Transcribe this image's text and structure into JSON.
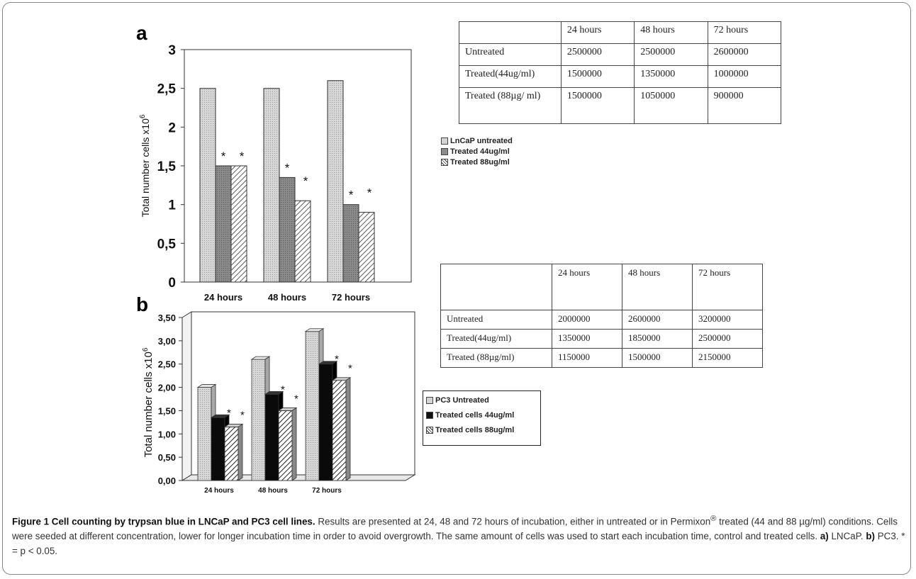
{
  "panel_a": {
    "letter": "a",
    "table": {
      "header": [
        "",
        "24 hours",
        "48 hours",
        "72 hours"
      ],
      "rows": [
        [
          "Untreated",
          "2500000",
          "2500000",
          "2600000"
        ],
        [
          "Treated(44ug/ml)",
          "1500000",
          "1350000",
          "1000000"
        ],
        [
          "Treated (88µg/ ml)",
          "1500000",
          "1050000",
          "900000"
        ]
      ]
    },
    "legend": [
      "LnCaP untreated",
      "Treated 44ug/ml",
      "Treated 88ug/ml"
    ]
  },
  "panel_b": {
    "letter": "b",
    "table": {
      "header": [
        "",
        "24 hours",
        "48 hours",
        "72 hours"
      ],
      "rows": [
        [
          "Untreated",
          "2000000",
          "2600000",
          "3200000"
        ],
        [
          "Treated(44ug/ml)",
          "1350000",
          "1850000",
          "2500000"
        ],
        [
          "Treated (88µg/ml)",
          "1150000",
          "1500000",
          "2150000"
        ]
      ]
    },
    "legend": [
      "PC3 Untreated",
      "Treated cells 44ug/ml",
      "Treated cells 88ug/ml"
    ]
  },
  "chart_data": [
    {
      "type": "bar",
      "panel": "a",
      "categories": [
        "24 hours",
        "48 hours",
        "72 hours"
      ],
      "series": [
        {
          "name": "LnCaP untreated",
          "values": [
            2.5,
            2.5,
            2.6
          ],
          "color": "#d4d4d4"
        },
        {
          "name": "Treated 44ug/ml",
          "values": [
            1.5,
            1.35,
            1.0
          ],
          "color": "#8c8c8c"
        },
        {
          "name": "Treated 88ug/ml",
          "values": [
            1.5,
            1.05,
            0.9
          ],
          "color": "#ffffff"
        }
      ],
      "significance": [
        [
          false,
          true,
          true
        ],
        [
          false,
          true,
          true
        ],
        [
          false,
          true,
          true
        ]
      ],
      "star": "*",
      "ylabel": "Total number cells x10",
      "ylabel_sup": "6",
      "ylim": [
        0,
        3
      ],
      "yticks": [
        0,
        0.5,
        1,
        1.5,
        2,
        2.5,
        3
      ],
      "ytick_labels": [
        "0",
        "0,5",
        "1",
        "1,5",
        "2",
        "2,5",
        "3"
      ],
      "grid": false,
      "legend_position": "right"
    },
    {
      "type": "bar",
      "panel": "b",
      "style": "3d",
      "categories": [
        "24 hours",
        "48 hours",
        "72 hours"
      ],
      "series": [
        {
          "name": "PC3 Untreated",
          "values": [
            2.0,
            2.6,
            3.2
          ],
          "color": "#d4d4d4"
        },
        {
          "name": "Treated cells 44ug/ml",
          "values": [
            1.35,
            1.85,
            2.5
          ],
          "color": "#0a0a0a"
        },
        {
          "name": "Treated cells 88ug/ml",
          "values": [
            1.15,
            1.5,
            2.15
          ],
          "color": "#ffffff"
        }
      ],
      "significance": [
        [
          false,
          true,
          true
        ],
        [
          false,
          true,
          true
        ],
        [
          false,
          true,
          true
        ]
      ],
      "star": "*",
      "ylabel": "Total number cells x10",
      "ylabel_sup": "6",
      "ylim": [
        0,
        3.5
      ],
      "yticks": [
        0,
        0.5,
        1,
        1.5,
        2,
        2.5,
        3,
        3.5
      ],
      "ytick_labels": [
        "0,00",
        "0,50",
        "1,00",
        "1,50",
        "2,00",
        "2,50",
        "3,00",
        "3,50"
      ],
      "grid": false,
      "legend_position": "right"
    }
  ],
  "caption": {
    "title": "Figure 1 Cell counting by trypsan blue in LNCaP and PC3 cell lines.",
    "text_1": " Results are presented at 24, 48 and 72 hours of incubation, either in untreated or in Permixon",
    "reg": "®",
    "text_2": " treated (44 and 88 µg/ml) conditions. Cells were seeded at different concentration, lower for longer incubation time in order to avoid overgrowth. The same amount of cells was used to start each incubation time, control and treated cells. ",
    "a_label": "a)",
    "a_text": " LNCaP. ",
    "b_label": "b)",
    "b_text": " PC3. * = p < 0.05."
  }
}
